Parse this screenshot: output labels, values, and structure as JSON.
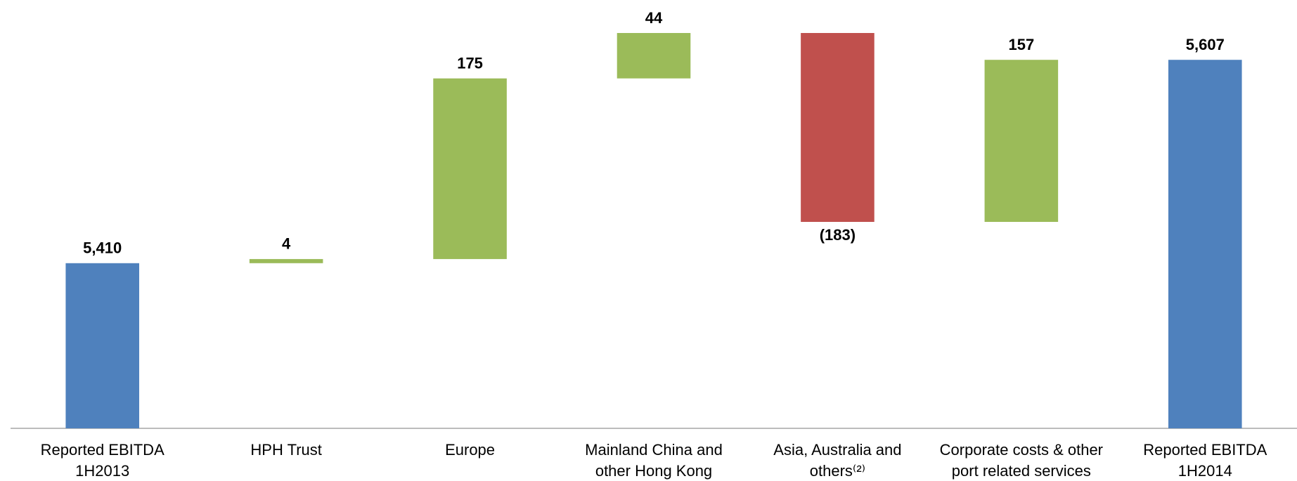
{
  "chart_data": {
    "type": "waterfall",
    "categories": [
      "Reported EBITDA\n1H2013",
      "HPH Trust",
      "Europe",
      "Mainland China and\nother Hong Kong",
      "Asia, Australia and\nothers⁽²⁾",
      "Corporate costs & other\nport related services",
      "Reported EBITDA\n1H2014"
    ],
    "values": [
      5410,
      4,
      175,
      44,
      -183,
      157,
      5607
    ],
    "value_labels": [
      "5,410",
      "4",
      "175",
      "44",
      "(183)",
      "157",
      "5,607"
    ],
    "measure": [
      "absolute",
      "relative",
      "relative",
      "relative",
      "relative",
      "relative",
      "total"
    ],
    "colors": [
      "#4f81bd",
      "#9bbb59",
      "#9bbb59",
      "#9bbb59",
      "#c0504d",
      "#9bbb59",
      "#4f81bd"
    ],
    "ylim": [
      5250,
      5650
    ]
  }
}
